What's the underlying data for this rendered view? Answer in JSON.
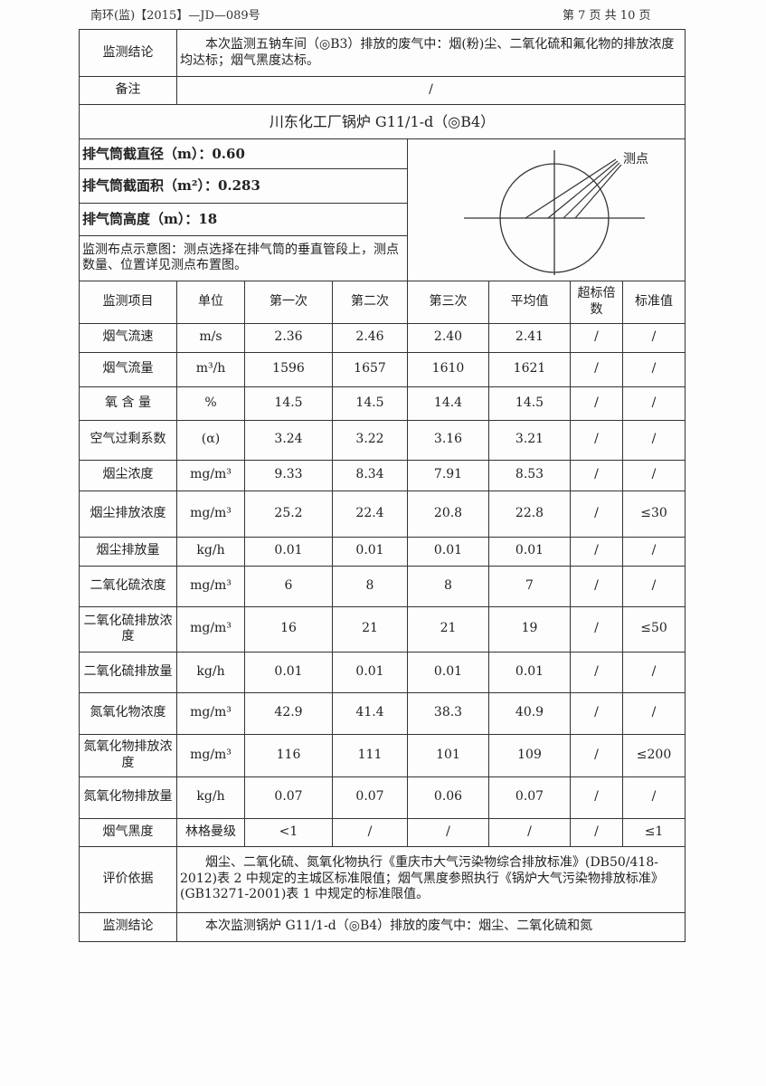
{
  "header": {
    "doc_no": "南环(监)【2015】—JD—089号",
    "page": "第 7 页 共 10 页"
  },
  "prev": {
    "conclusion_label": "监测结论",
    "conclusion": "本次监测五钠车间（◎B3）排放的废气中：烟(粉)尘、二氧化硫和氟化物的排放浓度均达标；烟气黑度达标。",
    "remark_label": "备注",
    "remark": "/"
  },
  "section_title": "川东化工厂锅炉 G11/1-d（◎B4）",
  "info": [
    "排气筒截直径（m）：0.60",
    "排气筒截面积（m²）：0.283",
    "排气筒高度（m）：18",
    "监测布点示意图：测点选择在排气筒的垂直管段上，测点数量、位置详见测点布置图。"
  ],
  "diagram": {
    "label": "测点"
  },
  "columns": [
    "监测项目",
    "单位",
    "第一次",
    "第二次",
    "第三次",
    "平均值",
    "超标倍数",
    "标准值"
  ],
  "rows": [
    [
      "烟气流速",
      "m/s",
      "2.36",
      "2.46",
      "2.40",
      "2.41",
      "/",
      "/"
    ],
    [
      "烟气流量",
      "m³/h",
      "1596",
      "1657",
      "1610",
      "1621",
      "/",
      "/"
    ],
    [
      "氧 含 量",
      "%",
      "14.5",
      "14.5",
      "14.4",
      "14.5",
      "/",
      "/"
    ],
    [
      "空气过剩系数",
      "(α)",
      "3.24",
      "3.22",
      "3.16",
      "3.21",
      "/",
      "/"
    ],
    [
      "烟尘浓度",
      "mg/m³",
      "9.33",
      "8.34",
      "7.91",
      "8.53",
      "/",
      "/"
    ],
    [
      "烟尘排放浓度",
      "mg/m³",
      "25.2",
      "22.4",
      "20.8",
      "22.8",
      "/",
      "≤30"
    ],
    [
      "烟尘排放量",
      "kg/h",
      "0.01",
      "0.01",
      "0.01",
      "0.01",
      "/",
      "/"
    ],
    [
      "二氧化硫浓度",
      "mg/m³",
      "6",
      "8",
      "8",
      "7",
      "/",
      "/"
    ],
    [
      "二氧化硫排放浓度",
      "mg/m³",
      "16",
      "21",
      "21",
      "19",
      "/",
      "≤50"
    ],
    [
      "二氧化硫排放量",
      "kg/h",
      "0.01",
      "0.01",
      "0.01",
      "0.01",
      "/",
      "/"
    ],
    [
      "氮氧化物浓度",
      "mg/m³",
      "42.9",
      "41.4",
      "38.3",
      "40.9",
      "/",
      "/"
    ],
    [
      "氮氧化物排放浓度",
      "mg/m³",
      "116",
      "111",
      "101",
      "109",
      "/",
      "≤200"
    ],
    [
      "氮氧化物排放量",
      "kg/h",
      "0.07",
      "0.07",
      "0.06",
      "0.07",
      "/",
      "/"
    ],
    [
      "烟气黑度",
      "林格曼级",
      "<1",
      "/",
      "/",
      "/",
      "/",
      "≤1"
    ]
  ],
  "basis": {
    "label": "评价依据",
    "text": "烟尘、二氧化硫、氮氧化物执行《重庆市大气污染物综合排放标准》(DB50/418-2012)表 2 中规定的主城区标准限值；烟气黑度参照执行《锅炉大气污染物排放标准》(GB13271-2001)表 1 中规定的标准限值。"
  },
  "conclusion": {
    "label": "监测结论",
    "text": "本次监测锅炉 G11/1-d（◎B4）排放的废气中：烟尘、二氧化硫和氮"
  }
}
